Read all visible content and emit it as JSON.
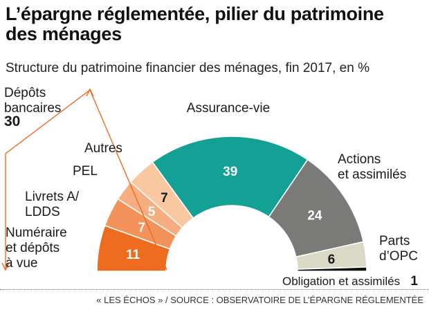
{
  "title_lines": [
    "L’épargne réglementée, pilier du patrimoine",
    "des ménages"
  ],
  "subtitle": "Structure du patrimoine financier des ménages, fin 2017, en %",
  "chart_data": {
    "type": "pie",
    "variant": "semicircle",
    "title": "",
    "unit": "%",
    "categories": [
      "Numéraire et dépôts à vue",
      "Livrets A/ LDDS",
      "PEL",
      "Autres",
      "Assurance-vie",
      "Actions et assimilés",
      "Parts d'OPC",
      "Obligation et assimilés"
    ],
    "values": [
      11,
      7,
      5,
      7,
      39,
      24,
      6,
      1
    ],
    "colors": [
      "#ee6b1f",
      "#f3925a",
      "#f6ad7f",
      "#f9c7a0",
      "#14a195",
      "#7a7a78",
      "#d9d9c5",
      "#111111"
    ],
    "value_label_colors": [
      "#ffffff",
      "#ffffff",
      "#ffffff",
      "#1a1a1a",
      "#ffffff",
      "#ffffff",
      "#1a1a1a",
      "#1a1a1a"
    ],
    "segments": [
      {
        "value_label": "11",
        "label_lines": [
          "Numéraire",
          "et dépôts",
          "à vue"
        ]
      },
      {
        "value_label": "7",
        "label_lines": [
          "Livrets A/",
          "LDDS"
        ]
      },
      {
        "value_label": "5",
        "label_lines": [
          "PEL"
        ]
      },
      {
        "value_label": "7",
        "label_lines": [
          "Autres"
        ]
      },
      {
        "value_label": "39",
        "label_lines": [
          "Assurance-vie"
        ]
      },
      {
        "value_label": "24",
        "label_lines": [
          "Actions",
          "et assimilés"
        ]
      },
      {
        "value_label": "6",
        "label_lines": [
          "Parts",
          "d’OPC"
        ]
      },
      {
        "value_label": "1",
        "label_lines": [
          "Obligation et assimilés"
        ]
      }
    ],
    "group_bracket": {
      "label_lines": [
        "Dépôts",
        "bancaires"
      ],
      "value": "30",
      "covers": [
        "Numéraire et dépôts à vue",
        "Livrets A/ LDDS",
        "PEL",
        "Autres"
      ],
      "color": "#ee6b1f"
    }
  },
  "footer": "« LES ÉCHOS » / SOURCE : OBSERVATOIRE DE L’ÉPARGNE RÉGLEMENTÉE"
}
